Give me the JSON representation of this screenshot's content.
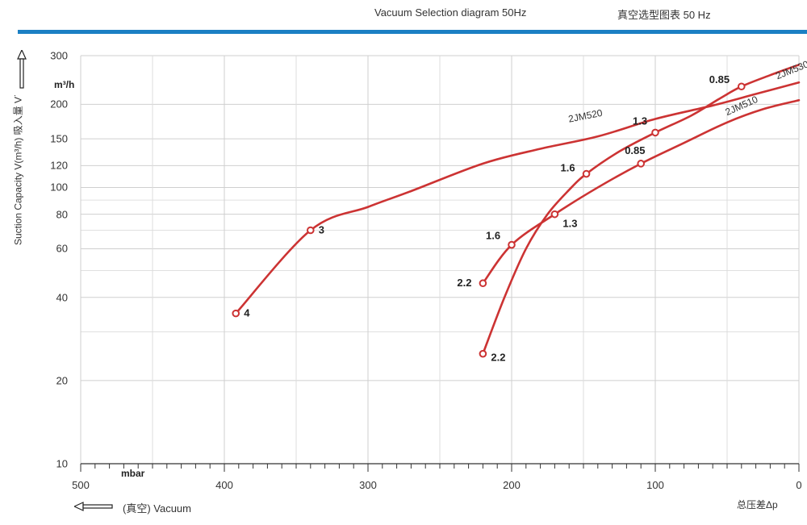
{
  "header": {
    "title": "Vacuum Selection diagram 50Hz",
    "title_cn": "真空选型图表 50 Hz"
  },
  "colors": {
    "curve": "#cc3333",
    "grid": "#cfcfcf",
    "rule": "#1b80c4"
  },
  "chart_data": {
    "type": "line",
    "ylabel": "Suction Capacity V(m³/h)  吸入量 V˙",
    "yunit": "m³/h",
    "xunit": "mbar",
    "xlabel_left": "(真空)  Vacuum",
    "xlabel_right": "总压差Δp",
    "y_scale": "log",
    "ylim": [
      10,
      300
    ],
    "xlim": [
      500,
      0
    ],
    "x_reversed": true,
    "grid": true,
    "y_ticks": [
      300,
      200,
      150,
      120,
      100,
      80,
      60,
      40,
      20,
      10
    ],
    "x_ticks": [
      500,
      400,
      300,
      200,
      100,
      0
    ],
    "series": [
      {
        "name": "2JM520",
        "x": [
          392,
          340,
          300,
          270,
          220,
          180,
          140,
          100,
          60,
          30,
          0
        ],
        "y": [
          35,
          70,
          85,
          97,
          122,
          138,
          153,
          177,
          198,
          218,
          240
        ],
        "markers": [
          {
            "x": 392,
            "y": 35,
            "label": "4"
          },
          {
            "x": 340,
            "y": 70,
            "label": "3"
          }
        ]
      },
      {
        "name": "2JM530",
        "x": [
          220,
          205,
          190,
          175,
          160,
          148,
          125,
          100,
          75,
          55,
          40,
          20,
          0
        ],
        "y": [
          25,
          40,
          60,
          80,
          98,
          112,
          135,
          158,
          182,
          210,
          232,
          255,
          278
        ],
        "markers": [
          {
            "x": 220,
            "y": 25,
            "label": "2.2"
          },
          {
            "x": 148,
            "y": 112,
            "label": "1.6"
          },
          {
            "x": 100,
            "y": 158,
            "label": "1.3"
          },
          {
            "x": 40,
            "y": 232,
            "label": "0.85"
          }
        ]
      },
      {
        "name": "2JM510",
        "x": [
          220,
          200,
          170,
          140,
          110,
          80,
          50,
          25,
          0
        ],
        "y": [
          45,
          62,
          80,
          100,
          122,
          145,
          172,
          192,
          207
        ],
        "markers": [
          {
            "x": 220,
            "y": 45,
            "label": "2.2"
          },
          {
            "x": 200,
            "y": 62,
            "label": "1.6"
          },
          {
            "x": 170,
            "y": 80,
            "label": "1.3"
          },
          {
            "x": 110,
            "y": 122,
            "label": "0.85"
          }
        ]
      }
    ]
  }
}
